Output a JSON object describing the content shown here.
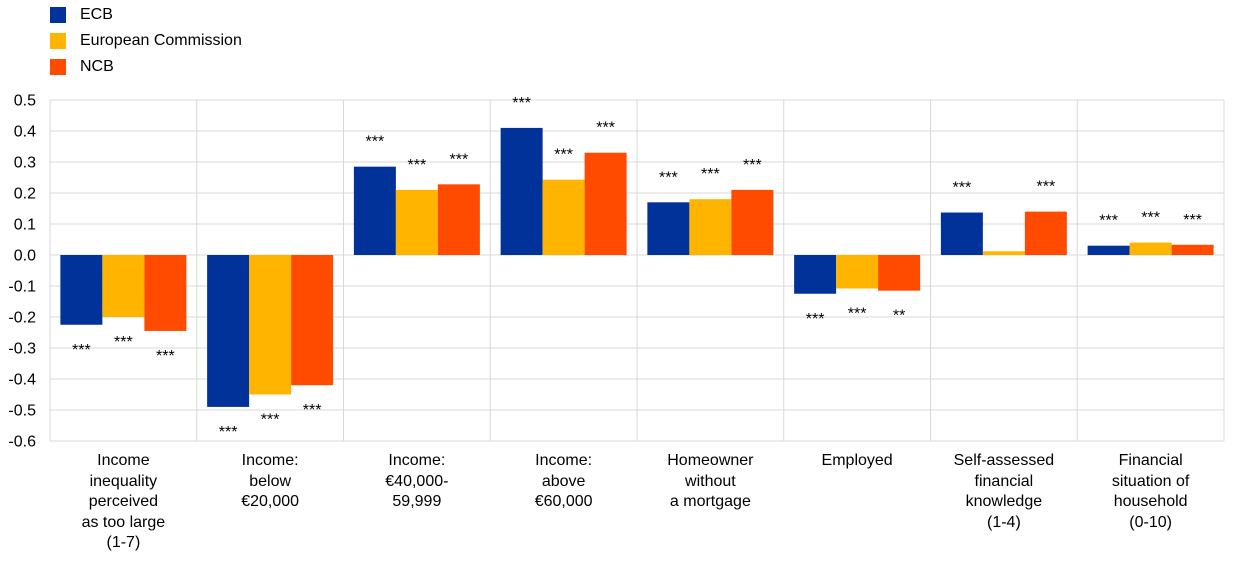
{
  "chart_data": {
    "type": "bar",
    "categories": [
      "Income\ninequality\nperceived\nas too large\n(1-7)",
      "Income:\nbelow\n€20,000",
      "Income:\n€40,000-\n59,999",
      "Income:\nabove\n€60,000",
      "Homeowner\nwithout\na mortgage",
      "Employed",
      "Self-assessed\nfinancial\nknowledge\n(1-4)",
      "Financial\nsituation of\nhousehold\n(0-10)"
    ],
    "series": [
      {
        "name": "ECB",
        "color": "#003299",
        "values": [
          -0.225,
          -0.49,
          0.285,
          0.41,
          0.17,
          -0.125,
          0.137,
          0.03
        ],
        "significance": [
          "***",
          "***",
          "***",
          "***",
          "***",
          "***",
          "***",
          "***"
        ]
      },
      {
        "name": "European Commission",
        "color": "#FFB400",
        "values": [
          -0.2,
          -0.45,
          0.21,
          0.243,
          0.18,
          -0.108,
          0.012,
          0.04
        ],
        "significance": [
          "***",
          "***",
          "***",
          "***",
          "***",
          "***",
          "",
          "***"
        ]
      },
      {
        "name": "NCB",
        "color": "#FF4B00",
        "values": [
          -0.245,
          -0.42,
          0.228,
          0.33,
          0.21,
          -0.115,
          0.14,
          0.033
        ],
        "significance": [
          "***",
          "***",
          "***",
          "***",
          "***",
          "**",
          "***",
          "***"
        ]
      }
    ],
    "ylim": [
      -0.6,
      0.5
    ],
    "yticks": [
      "0.5",
      "0.4",
      "0.3",
      "0.2",
      "0.1",
      "0.0",
      "-0.1",
      "-0.2",
      "-0.3",
      "-0.4",
      "-0.5",
      "-0.6"
    ],
    "ytick_values": [
      0.5,
      0.4,
      0.3,
      0.2,
      0.1,
      0.0,
      -0.1,
      -0.2,
      -0.3,
      -0.4,
      -0.5,
      -0.6
    ],
    "grid": true,
    "legend_position": "top-left"
  }
}
